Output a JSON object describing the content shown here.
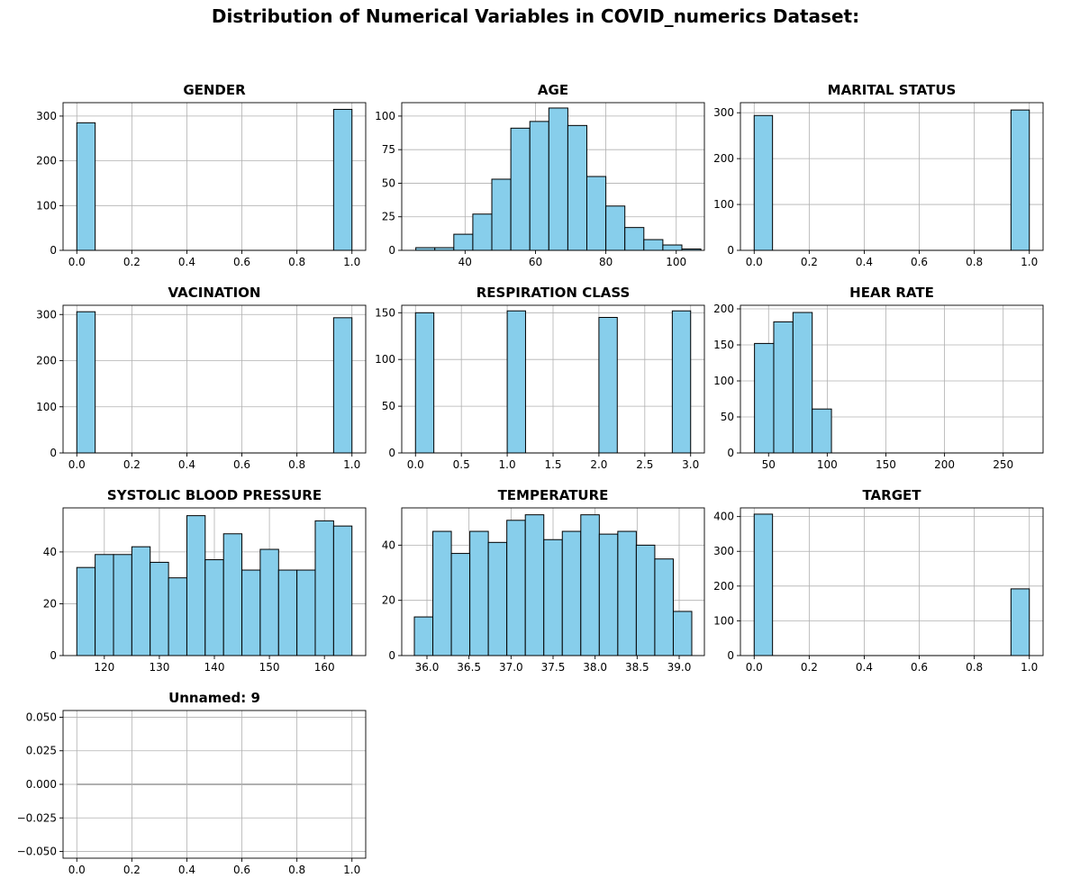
{
  "suptitle": "Distribution of Numerical Variables in COVID_numerics Dataset:",
  "style": {
    "bar_fill": "#87ceeb",
    "bar_edge": "#000000",
    "grid_color": "#b0b0b0"
  },
  "chart_data": [
    {
      "type": "bar",
      "title": "GENDER",
      "grid": true,
      "bins": 15,
      "xlim": [
        -0.05,
        1.05
      ],
      "ylim": [
        0,
        330
      ],
      "xticks": [
        0.0,
        0.2,
        0.4,
        0.6,
        0.8,
        1.0
      ],
      "xtick_labels": [
        "0.0",
        "0.2",
        "0.4",
        "0.6",
        "0.8",
        "1.0"
      ],
      "yticks": [
        0,
        100,
        200,
        300
      ],
      "ytick_labels": [
        "0",
        "100",
        "200",
        "300"
      ],
      "bin_edges": [
        0.0,
        0.0667,
        0.1333,
        0.2,
        0.2667,
        0.3333,
        0.4,
        0.4667,
        0.5333,
        0.6,
        0.6667,
        0.7333,
        0.8,
        0.8667,
        0.9333,
        1.0
      ],
      "counts": [
        285,
        0,
        0,
        0,
        0,
        0,
        0,
        0,
        0,
        0,
        0,
        0,
        0,
        0,
        315
      ]
    },
    {
      "type": "bar",
      "title": "AGE",
      "grid": true,
      "bins": 15,
      "xlim": [
        22,
        108
      ],
      "ylim": [
        0,
        110
      ],
      "xticks": [
        40,
        60,
        80,
        100
      ],
      "xtick_labels": [
        "40",
        "60",
        "80",
        "100"
      ],
      "yticks": [
        0,
        25,
        50,
        75,
        100
      ],
      "ytick_labels": [
        "0",
        "25",
        "50",
        "75",
        "100"
      ],
      "bin_edges": [
        26,
        31.4,
        36.8,
        42.2,
        47.6,
        53,
        58.4,
        63.8,
        69.2,
        74.6,
        80,
        85.4,
        90.8,
        96.2,
        101.6,
        107
      ],
      "counts": [
        2,
        2,
        12,
        27,
        53,
        91,
        96,
        106,
        93,
        55,
        33,
        17,
        8,
        4,
        1
      ]
    },
    {
      "type": "bar",
      "title": "MARITAL STATUS",
      "grid": true,
      "bins": 15,
      "xlim": [
        -0.05,
        1.05
      ],
      "ylim": [
        0,
        322
      ],
      "xticks": [
        0.0,
        0.2,
        0.4,
        0.6,
        0.8,
        1.0
      ],
      "xtick_labels": [
        "0.0",
        "0.2",
        "0.4",
        "0.6",
        "0.8",
        "1.0"
      ],
      "yticks": [
        0,
        100,
        200,
        300
      ],
      "ytick_labels": [
        "0",
        "100",
        "200",
        "300"
      ],
      "bin_edges": [
        0.0,
        0.0667,
        0.1333,
        0.2,
        0.2667,
        0.3333,
        0.4,
        0.4667,
        0.5333,
        0.6,
        0.6667,
        0.7333,
        0.8,
        0.8667,
        0.9333,
        1.0
      ],
      "counts": [
        294,
        0,
        0,
        0,
        0,
        0,
        0,
        0,
        0,
        0,
        0,
        0,
        0,
        0,
        306
      ]
    },
    {
      "type": "bar",
      "title": "VACINATION",
      "grid": true,
      "bins": 15,
      "xlim": [
        -0.05,
        1.05
      ],
      "ylim": [
        0,
        320
      ],
      "xticks": [
        0.0,
        0.2,
        0.4,
        0.6,
        0.8,
        1.0
      ],
      "xtick_labels": [
        "0.0",
        "0.2",
        "0.4",
        "0.6",
        "0.8",
        "1.0"
      ],
      "yticks": [
        0,
        100,
        200,
        300
      ],
      "ytick_labels": [
        "0",
        "100",
        "200",
        "300"
      ],
      "bin_edges": [
        0.0,
        0.0667,
        0.1333,
        0.2,
        0.2667,
        0.3333,
        0.4,
        0.4667,
        0.5333,
        0.6,
        0.6667,
        0.7333,
        0.8,
        0.8667,
        0.9333,
        1.0
      ],
      "counts": [
        306,
        0,
        0,
        0,
        0,
        0,
        0,
        0,
        0,
        0,
        0,
        0,
        0,
        0,
        293
      ]
    },
    {
      "type": "bar",
      "title": "RESPIRATION CLASS",
      "grid": true,
      "bins": 15,
      "xlim": [
        -0.15,
        3.15
      ],
      "ylim": [
        0,
        158
      ],
      "xticks": [
        0.0,
        0.5,
        1.0,
        1.5,
        2.0,
        2.5,
        3.0
      ],
      "xtick_labels": [
        "0.0",
        "0.5",
        "1.0",
        "1.5",
        "2.0",
        "2.5",
        "3.0"
      ],
      "yticks": [
        0,
        50,
        100,
        150
      ],
      "ytick_labels": [
        "0",
        "50",
        "100",
        "150"
      ],
      "bin_edges": [
        0.0,
        0.2,
        0.4,
        0.6,
        0.8,
        1.0,
        1.2,
        1.4,
        1.6,
        1.8,
        2.0,
        2.2,
        2.4,
        2.6,
        2.8,
        3.0
      ],
      "counts": [
        150,
        0,
        0,
        0,
        0,
        152,
        0,
        0,
        0,
        0,
        145,
        0,
        0,
        0,
        152
      ]
    },
    {
      "type": "bar",
      "title": "HEAR RATE",
      "grid": true,
      "bins": 15,
      "xlim": [
        26,
        284
      ],
      "ylim": [
        0,
        205
      ],
      "xticks": [
        50,
        100,
        150,
        200,
        250
      ],
      "xtick_labels": [
        "50",
        "100",
        "150",
        "200",
        "250"
      ],
      "yticks": [
        0,
        50,
        100,
        150,
        200
      ],
      "ytick_labels": [
        "0",
        "50",
        "100",
        "150",
        "200"
      ],
      "bin_edges": [
        38,
        54.4,
        70.8,
        87.2,
        103.6,
        120,
        136.4,
        152.8,
        169.2,
        185.6,
        202,
        218.4,
        234.8,
        251.2,
        267.6,
        284
      ],
      "counts": [
        152,
        182,
        195,
        61,
        0,
        0,
        0,
        0,
        0,
        0,
        0,
        0,
        0,
        0,
        0
      ]
    },
    {
      "type": "bar",
      "title": "SYSTOLIC BLOOD PRESSURE",
      "grid": true,
      "bins": 15,
      "xlim": [
        112.5,
        167.5
      ],
      "ylim": [
        0,
        57
      ],
      "xticks": [
        120,
        130,
        140,
        150,
        160
      ],
      "xtick_labels": [
        "120",
        "130",
        "140",
        "150",
        "160"
      ],
      "yticks": [
        0,
        20,
        40
      ],
      "ytick_labels": [
        "0",
        "20",
        "40"
      ],
      "bin_edges": [
        115,
        118.33,
        121.67,
        125,
        128.33,
        131.67,
        135,
        138.33,
        141.67,
        145,
        148.33,
        151.67,
        155,
        158.33,
        161.67,
        165
      ],
      "counts": [
        34,
        39,
        39,
        42,
        36,
        30,
        54,
        37,
        47,
        33,
        41,
        33,
        33,
        52,
        50
      ]
    },
    {
      "type": "bar",
      "title": "TEMPERATURE",
      "grid": true,
      "bins": 15,
      "xlim": [
        35.7,
        39.3
      ],
      "ylim": [
        0,
        53.5
      ],
      "xticks": [
        36.0,
        36.5,
        37.0,
        37.5,
        38.0,
        38.5,
        39.0
      ],
      "xtick_labels": [
        "36.0",
        "36.5",
        "37.0",
        "37.5",
        "38.0",
        "38.5",
        "39.0"
      ],
      "yticks": [
        0,
        20,
        40
      ],
      "ytick_labels": [
        "0",
        "20",
        "40"
      ],
      "bin_edges": [
        35.85,
        36.07,
        36.29,
        36.51,
        36.73,
        36.95,
        37.17,
        37.39,
        37.61,
        37.83,
        38.05,
        38.27,
        38.49,
        38.71,
        38.93,
        39.15
      ],
      "counts": [
        14,
        45,
        37,
        45,
        41,
        49,
        51,
        42,
        45,
        51,
        44,
        45,
        40,
        35,
        16
      ]
    },
    {
      "type": "bar",
      "title": "TARGET",
      "grid": true,
      "bins": 15,
      "xlim": [
        -0.05,
        1.05
      ],
      "ylim": [
        0,
        425
      ],
      "xticks": [
        0.0,
        0.2,
        0.4,
        0.6,
        0.8,
        1.0
      ],
      "xtick_labels": [
        "0.0",
        "0.2",
        "0.4",
        "0.6",
        "0.8",
        "1.0"
      ],
      "yticks": [
        0,
        100,
        200,
        300,
        400
      ],
      "ytick_labels": [
        "0",
        "100",
        "200",
        "300",
        "400"
      ],
      "bin_edges": [
        0.0,
        0.0667,
        0.1333,
        0.2,
        0.2667,
        0.3333,
        0.4,
        0.4667,
        0.5333,
        0.6,
        0.6667,
        0.7333,
        0.8,
        0.8667,
        0.9333,
        1.0
      ],
      "counts": [
        407,
        0,
        0,
        0,
        0,
        0,
        0,
        0,
        0,
        0,
        0,
        0,
        0,
        0,
        192
      ]
    },
    {
      "type": "bar",
      "title": "Unnamed: 9",
      "grid": true,
      "bins": 0,
      "xlim": [
        -0.05,
        1.05
      ],
      "ylim": [
        -0.055,
        0.055
      ],
      "xticks": [
        0.0,
        0.2,
        0.4,
        0.6,
        0.8,
        1.0
      ],
      "xtick_labels": [
        "0.0",
        "0.2",
        "0.4",
        "0.6",
        "0.8",
        "1.0"
      ],
      "yticks": [
        -0.05,
        -0.025,
        0.0,
        0.025,
        0.05
      ],
      "ytick_labels": [
        "−0.050",
        "−0.025",
        "0.000",
        "0.025",
        "0.050"
      ],
      "bin_edges": [],
      "counts": []
    }
  ]
}
